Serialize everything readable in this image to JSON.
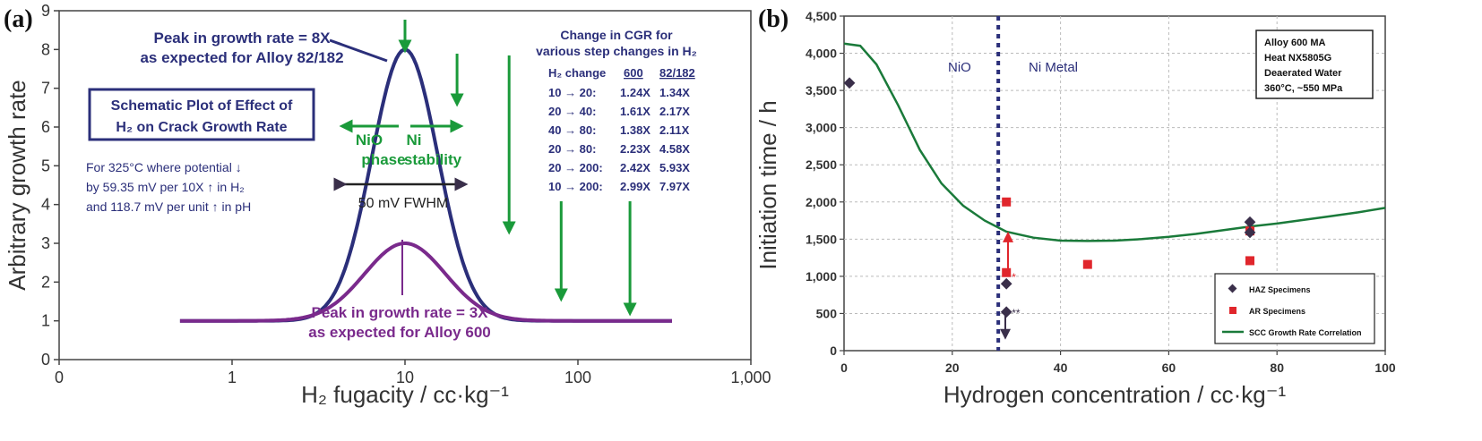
{
  "chart_data": [
    {
      "type": "line",
      "panel_label": "(a)",
      "xlabel": "H₂ fugacity / cc·kg⁻¹",
      "ylabel": "Arbitrary growth rate",
      "x_scale": "log",
      "xlim": [
        0.1,
        1000
      ],
      "ylim": [
        0,
        9
      ],
      "x_ticks": [
        "0",
        "1",
        "10",
        "100",
        "1,000"
      ],
      "y_ticks": [
        "0",
        "1",
        "2",
        "3",
        "4",
        "5",
        "6",
        "7",
        "8",
        "9"
      ],
      "series": [
        {
          "color": "#2b2f7a",
          "peak_x": 10,
          "peak_y": 8,
          "baseline": 1,
          "x_start": 0.5,
          "x_end": 350,
          "fwhm_decades": 0.45
        },
        {
          "color": "#7a2a8c",
          "peak_x": 10,
          "peak_y": 3,
          "baseline": 1,
          "x_start": 0.5,
          "x_end": 350,
          "fwhm_decades": 0.55
        }
      ],
      "annotations": {
        "peak_8x_line1": "Peak in growth rate = 8X",
        "peak_8x_line2": "as expected for Alloy 82/182",
        "peak_3x_line1": "Peak in growth rate = 3X",
        "peak_3x_line2": "as expected for Alloy 600",
        "schematic_line1": "Schematic Plot of Effect of",
        "schematic_line2": "H₂ on Crack Growth Rate",
        "nio_label": "NiO",
        "ni_label": "Ni",
        "phase_label": "phase",
        "stability_label": "stability",
        "fwhm_label": "50 mV FWHM",
        "potential_note": [
          "For 325°C where potential ↓",
          "by 59.35 mV per 10X ↑ in H₂",
          "and 118.7 mV per unit ↑ in pH"
        ]
      },
      "cgr_table": {
        "title_line1": "Change in CGR for",
        "title_line2": "various step changes in H₂",
        "headers": [
          "H₂ change",
          "600",
          "82/182"
        ],
        "rows": [
          [
            "10 → 20:",
            "1.24X",
            "1.34X"
          ],
          [
            "20 → 40:",
            "1.61X",
            "2.17X"
          ],
          [
            "40 → 80:",
            "1.38X",
            "2.11X"
          ],
          [
            "20 → 80:",
            "2.23X",
            "4.58X"
          ],
          [
            "20 → 200:",
            "2.42X",
            "5.93X"
          ],
          [
            "10 → 200:",
            "2.99X",
            "7.97X"
          ]
        ]
      },
      "arrows_x": [
        10,
        20,
        40,
        80,
        200
      ]
    },
    {
      "type": "scatter",
      "panel_label": "(b)",
      "xlabel": "Hydrogen concentration / cc·kg⁻¹",
      "ylabel": "Initiation time / h",
      "xlim": [
        0,
        100
      ],
      "ylim": [
        0,
        4500
      ],
      "x_ticks": [
        "0",
        "20",
        "40",
        "60",
        "80",
        "100"
      ],
      "y_ticks": [
        "0",
        "500",
        "1,000",
        "1,500",
        "2,000",
        "2,500",
        "3,000",
        "3,500",
        "4,000",
        "4,500"
      ],
      "boundary_x": 28.5,
      "region_labels": [
        "NiO",
        "Ni Metal"
      ],
      "info_box": [
        "Alloy 600 MA",
        "Heat NX5805G",
        "Deaerated Water",
        "360°C, ~550 MPa"
      ],
      "series": [
        {
          "name": "HAZ Specimens",
          "marker": "diamond",
          "color": "#3a2f4a",
          "points": [
            [
              1,
              3600
            ],
            [
              30,
              900
            ],
            [
              30,
              520
            ],
            [
              75,
              1730
            ],
            [
              75,
              1590
            ]
          ]
        },
        {
          "name": "AR Specimens",
          "marker": "square",
          "color": "#e0262c",
          "points": [
            [
              30,
              2000
            ],
            [
              30,
              1050
            ],
            [
              45,
              1160
            ],
            [
              75,
              1610
            ],
            [
              75,
              1210
            ]
          ]
        },
        {
          "name": "SCC Growth Rate Correlation",
          "marker": "line",
          "color": "#1a7a3a",
          "points": [
            [
              0,
              4130
            ],
            [
              3,
              4100
            ],
            [
              6,
              3850
            ],
            [
              10,
              3300
            ],
            [
              14,
              2700
            ],
            [
              18,
              2250
            ],
            [
              22,
              1950
            ],
            [
              26,
              1750
            ],
            [
              30,
              1600
            ],
            [
              35,
              1520
            ],
            [
              40,
              1480
            ],
            [
              45,
              1475
            ],
            [
              50,
              1480
            ],
            [
              55,
              1500
            ],
            [
              60,
              1530
            ],
            [
              65,
              1570
            ],
            [
              70,
              1620
            ],
            [
              75,
              1670
            ],
            [
              80,
              1710
            ],
            [
              85,
              1760
            ],
            [
              90,
              1810
            ],
            [
              95,
              1860
            ],
            [
              100,
              1920
            ]
          ]
        }
      ],
      "star_labels": [
        "*",
        "**"
      ]
    }
  ]
}
